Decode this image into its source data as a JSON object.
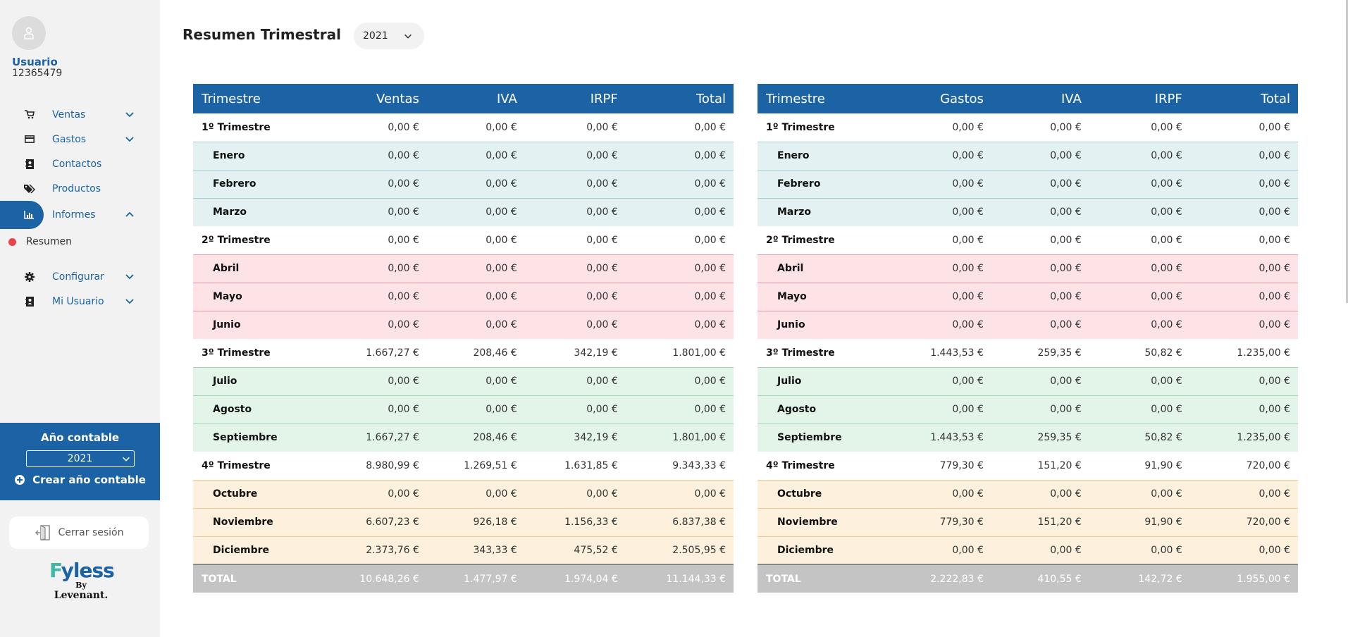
{
  "user": {
    "name": "Usuario",
    "id": "12365479"
  },
  "nav": {
    "ventas": "Ventas",
    "gastos": "Gastos",
    "contactos": "Contactos",
    "productos": "Productos",
    "informes": "Informes",
    "resumen": "Resumen",
    "configurar": "Configurar",
    "mi_usuario": "Mi Usuario"
  },
  "accounting_year": {
    "title": "Año contable",
    "selected": "2021",
    "create_label": "Crear año contable"
  },
  "logout_label": "Cerrar sesión",
  "logo": {
    "brand_f": "F",
    "brand_rest": "yless",
    "by": "By",
    "company": "Levenant."
  },
  "page": {
    "title": "Resumen Trimestral",
    "year": "2021"
  },
  "accent": "#1b63a4",
  "ventas_table": {
    "headers": [
      "Trimestre",
      "Ventas",
      "IVA",
      "IRPF",
      "Total"
    ],
    "rows": [
      {
        "label": "1º Trimestre",
        "v": [
          "0,00 €",
          "0,00 €",
          "0,00 €",
          "0,00 €"
        ]
      },
      {
        "label": "Enero",
        "v": [
          "0,00 €",
          "0,00 €",
          "0,00 €",
          "0,00 €"
        ]
      },
      {
        "label": "Febrero",
        "v": [
          "0,00 €",
          "0,00 €",
          "0,00 €",
          "0,00 €"
        ]
      },
      {
        "label": "Marzo",
        "v": [
          "0,00 €",
          "0,00 €",
          "0,00 €",
          "0,00 €"
        ]
      },
      {
        "label": "2º Trimestre",
        "v": [
          "0,00 €",
          "0,00 €",
          "0,00 €",
          "0,00 €"
        ]
      },
      {
        "label": "Abril",
        "v": [
          "0,00 €",
          "0,00 €",
          "0,00 €",
          "0,00 €"
        ]
      },
      {
        "label": "Mayo",
        "v": [
          "0,00 €",
          "0,00 €",
          "0,00 €",
          "0,00 €"
        ]
      },
      {
        "label": "Junio",
        "v": [
          "0,00 €",
          "0,00 €",
          "0,00 €",
          "0,00 €"
        ]
      },
      {
        "label": "3º Trimestre",
        "v": [
          "1.667,27 €",
          "208,46 €",
          "342,19 €",
          "1.801,00 €"
        ]
      },
      {
        "label": "Julio",
        "v": [
          "0,00 €",
          "0,00 €",
          "0,00 €",
          "0,00 €"
        ]
      },
      {
        "label": "Agosto",
        "v": [
          "0,00 €",
          "0,00 €",
          "0,00 €",
          "0,00 €"
        ]
      },
      {
        "label": "Septiembre",
        "v": [
          "1.667,27 €",
          "208,46 €",
          "342,19 €",
          "1.801,00 €"
        ]
      },
      {
        "label": "4º Trimestre",
        "v": [
          "8.980,99 €",
          "1.269,51 €",
          "1.631,85 €",
          "9.343,33 €"
        ]
      },
      {
        "label": "Octubre",
        "v": [
          "0,00 €",
          "0,00 €",
          "0,00 €",
          "0,00 €"
        ]
      },
      {
        "label": "Noviembre",
        "v": [
          "6.607,23 €",
          "926,18 €",
          "1.156,33 €",
          "6.837,38 €"
        ]
      },
      {
        "label": "Diciembre",
        "v": [
          "2.373,76 €",
          "343,33 €",
          "475,52 €",
          "2.505,95 €"
        ]
      },
      {
        "label": "TOTAL",
        "v": [
          "10.648,26 €",
          "1.477,97 €",
          "1.974,04 €",
          "11.144,33 €"
        ]
      }
    ]
  },
  "gastos_table": {
    "headers": [
      "Trimestre",
      "Gastos",
      "IVA",
      "IRPF",
      "Total"
    ],
    "rows": [
      {
        "label": "1º Trimestre",
        "v": [
          "0,00 €",
          "0,00 €",
          "0,00 €",
          "0,00 €"
        ]
      },
      {
        "label": "Enero",
        "v": [
          "0,00 €",
          "0,00 €",
          "0,00 €",
          "0,00 €"
        ]
      },
      {
        "label": "Febrero",
        "v": [
          "0,00 €",
          "0,00 €",
          "0,00 €",
          "0,00 €"
        ]
      },
      {
        "label": "Marzo",
        "v": [
          "0,00 €",
          "0,00 €",
          "0,00 €",
          "0,00 €"
        ]
      },
      {
        "label": "2º Trimestre",
        "v": [
          "0,00 €",
          "0,00 €",
          "0,00 €",
          "0,00 €"
        ]
      },
      {
        "label": "Abril",
        "v": [
          "0,00 €",
          "0,00 €",
          "0,00 €",
          "0,00 €"
        ]
      },
      {
        "label": "Mayo",
        "v": [
          "0,00 €",
          "0,00 €",
          "0,00 €",
          "0,00 €"
        ]
      },
      {
        "label": "Junio",
        "v": [
          "0,00 €",
          "0,00 €",
          "0,00 €",
          "0,00 €"
        ]
      },
      {
        "label": "3º Trimestre",
        "v": [
          "1.443,53 €",
          "259,35 €",
          "50,82 €",
          "1.235,00 €"
        ]
      },
      {
        "label": "Julio",
        "v": [
          "0,00 €",
          "0,00 €",
          "0,00 €",
          "0,00 €"
        ]
      },
      {
        "label": "Agosto",
        "v": [
          "0,00 €",
          "0,00 €",
          "0,00 €",
          "0,00 €"
        ]
      },
      {
        "label": "Septiembre",
        "v": [
          "1.443,53 €",
          "259,35 €",
          "50,82 €",
          "1.235,00 €"
        ]
      },
      {
        "label": "4º Trimestre",
        "v": [
          "779,30 €",
          "151,20 €",
          "91,90 €",
          "720,00 €"
        ]
      },
      {
        "label": "Octubre",
        "v": [
          "0,00 €",
          "0,00 €",
          "0,00 €",
          "0,00 €"
        ]
      },
      {
        "label": "Noviembre",
        "v": [
          "779,30 €",
          "151,20 €",
          "91,90 €",
          "720,00 €"
        ]
      },
      {
        "label": "Diciembre",
        "v": [
          "0,00 €",
          "0,00 €",
          "0,00 €",
          "0,00 €"
        ]
      },
      {
        "label": "TOTAL",
        "v": [
          "2.222,83 €",
          "410,55 €",
          "142,72 €",
          "1.955,00 €"
        ]
      }
    ]
  }
}
